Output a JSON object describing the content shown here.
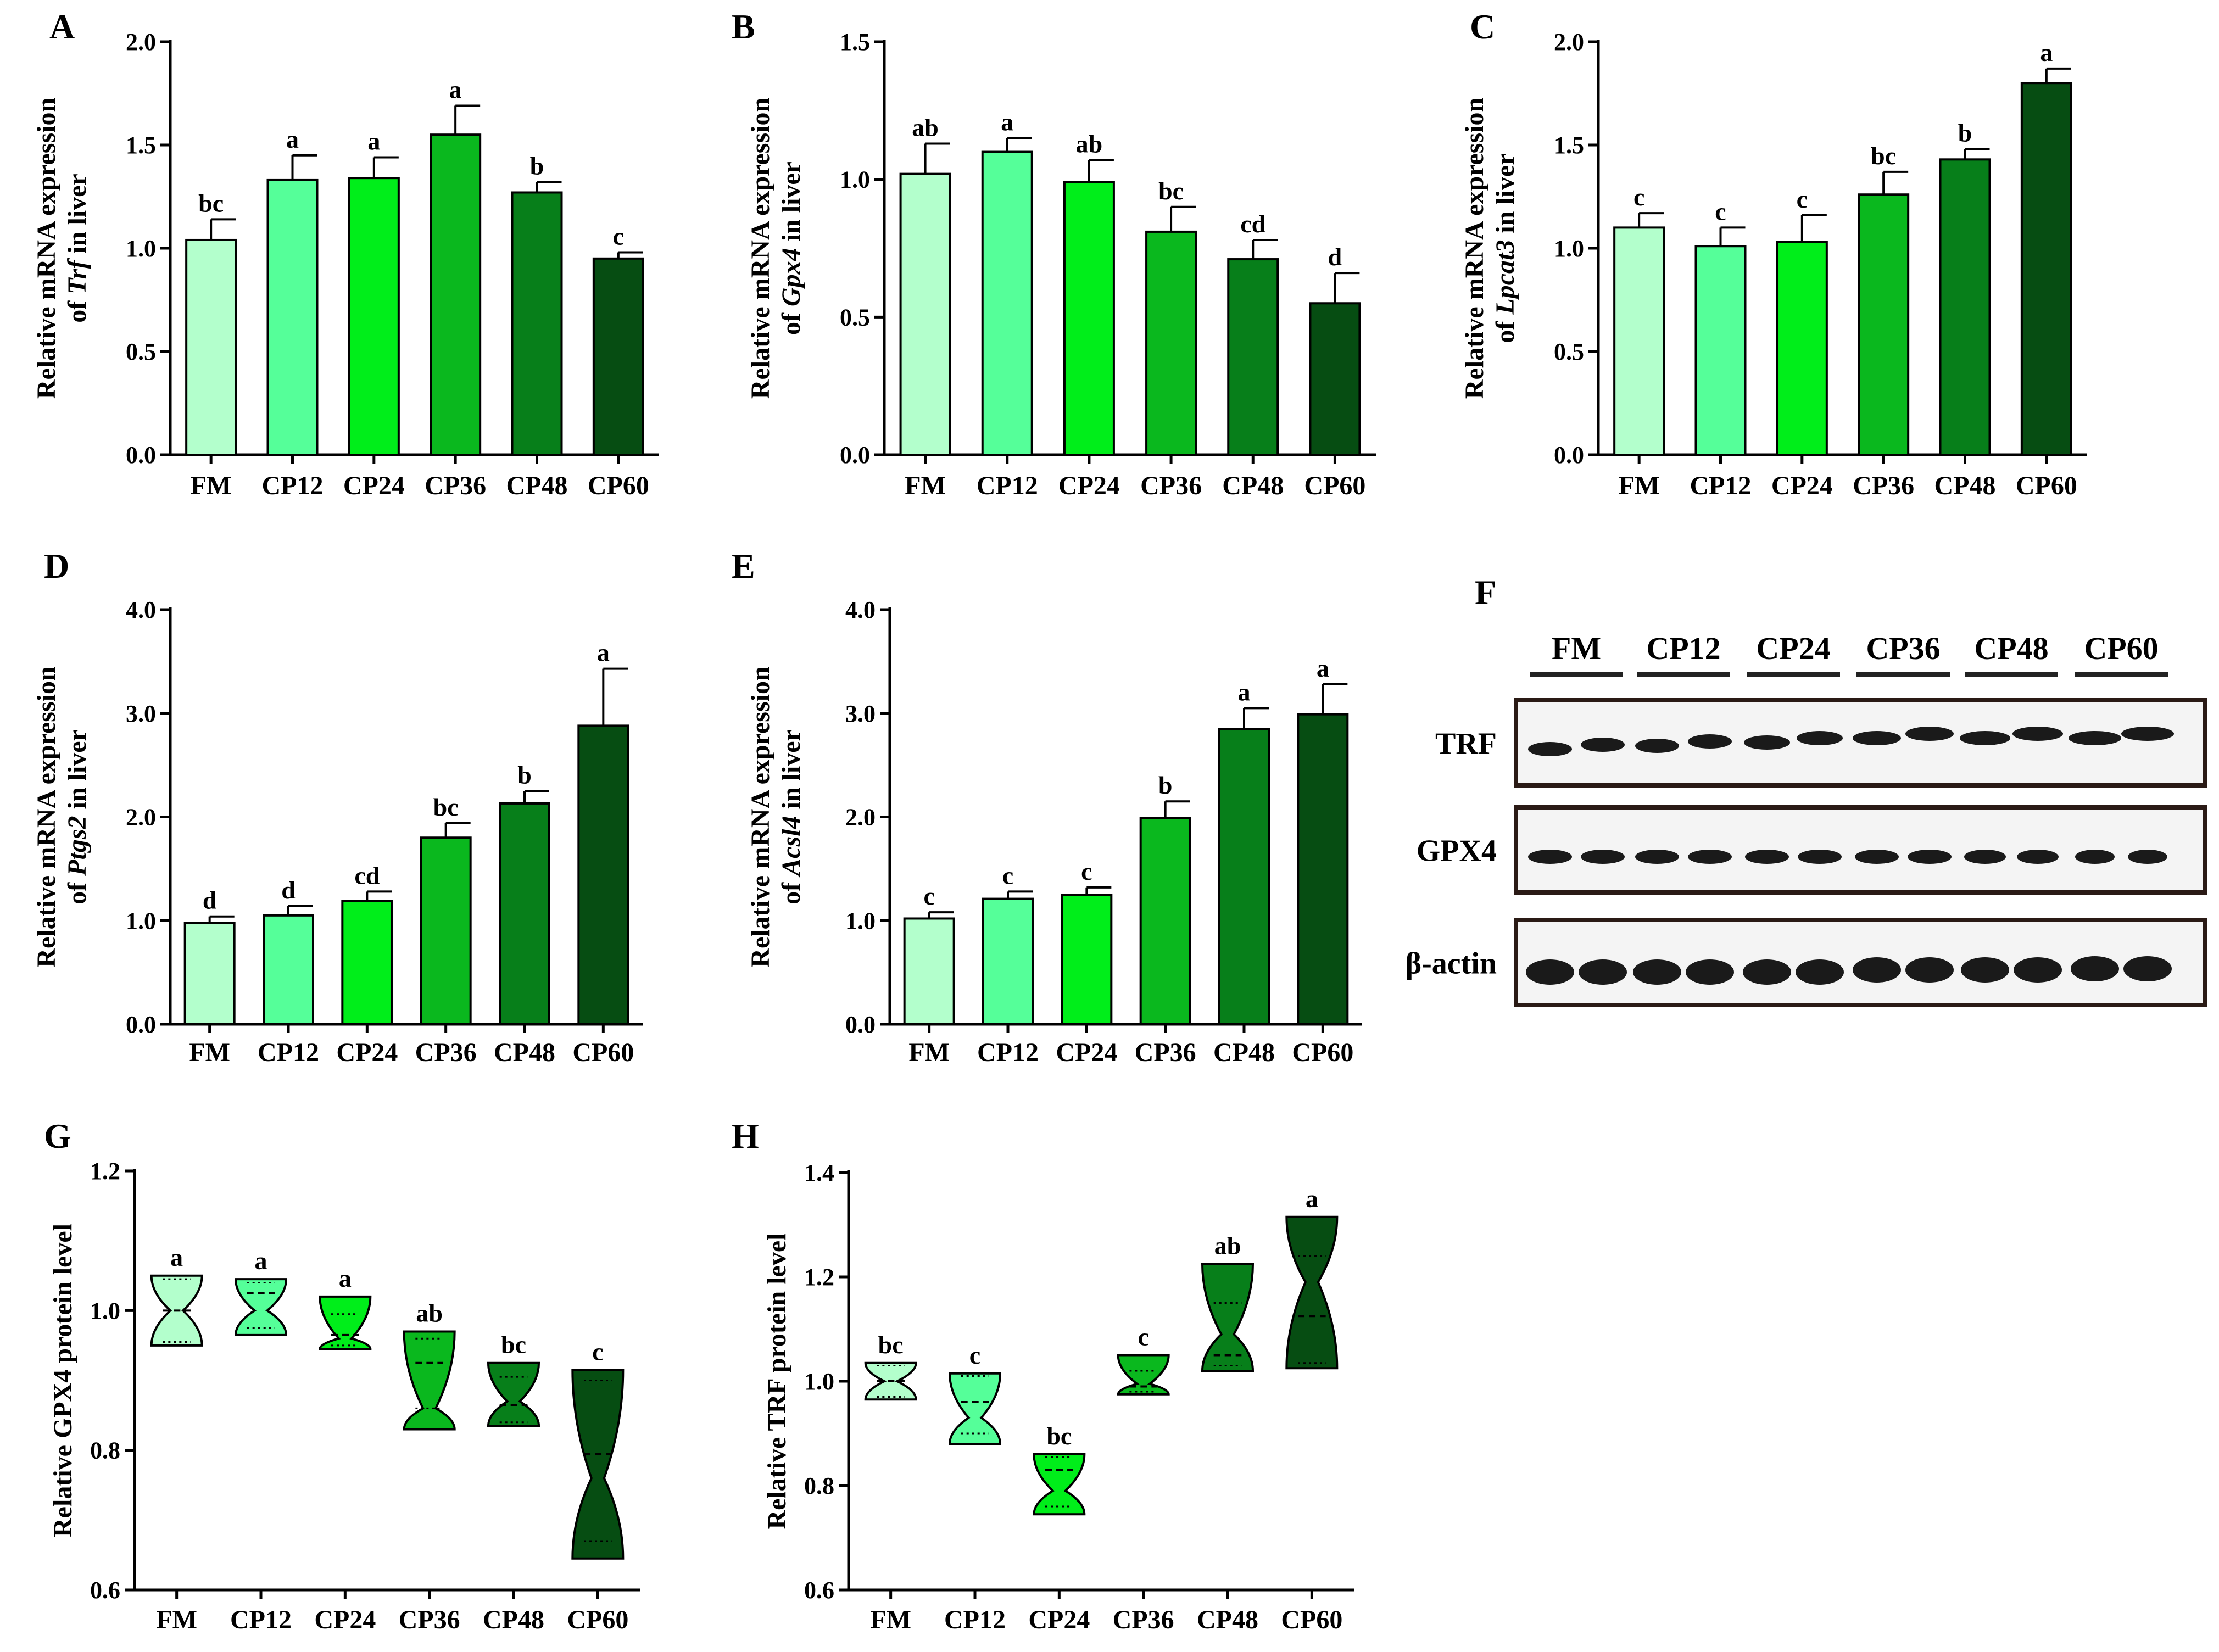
{
  "figure": {
    "colors": [
      "#b3ffcc",
      "#55ff99",
      "#00ee1a",
      "#0ab81e",
      "#077f1a",
      "#064d12"
    ],
    "blot": {
      "letter": "F",
      "lanes": [
        "FM",
        "CP12",
        "CP24",
        "CP36",
        "CP48",
        "CP60"
      ],
      "rows": [
        "TRF",
        "GPX4",
        "β-actin"
      ]
    }
  },
  "chart_data": [
    {
      "id": "A",
      "letter": "A",
      "type": "bar",
      "title": "",
      "ylabel_line1": "Relative mRNA expression",
      "ylabel_line2_pre": "of ",
      "ylabel_gene": "Trf",
      "ylabel_line2_post": " in liver",
      "categories": [
        "FM",
        "CP12",
        "CP24",
        "CP36",
        "CP48",
        "CP60"
      ],
      "values": [
        1.04,
        1.33,
        1.34,
        1.55,
        1.27,
        0.95
      ],
      "errors": [
        0.1,
        0.12,
        0.1,
        0.14,
        0.05,
        0.03
      ],
      "letters": [
        "bc",
        "a",
        "a",
        "a",
        "b",
        "c"
      ],
      "ylim": [
        0,
        2.0
      ],
      "ticks": [
        "0.0",
        "0.5",
        "1.0",
        "1.5",
        "2.0"
      ]
    },
    {
      "id": "B",
      "letter": "B",
      "type": "bar",
      "title": "",
      "ylabel_line1": "Relative mRNA expression",
      "ylabel_line2_pre": "of ",
      "ylabel_gene": "Gpx4",
      "ylabel_line2_post": " in liver",
      "categories": [
        "FM",
        "CP12",
        "CP24",
        "CP36",
        "CP48",
        "CP60"
      ],
      "values": [
        1.02,
        1.1,
        0.99,
        0.81,
        0.71,
        0.55
      ],
      "errors": [
        0.11,
        0.05,
        0.08,
        0.09,
        0.07,
        0.11
      ],
      "letters": [
        "ab",
        "a",
        "ab",
        "bc",
        "cd",
        "d"
      ],
      "ylim": [
        0,
        1.5
      ],
      "ticks": [
        "0.0",
        "0.5",
        "1.0",
        "1.5"
      ]
    },
    {
      "id": "C",
      "letter": "C",
      "type": "bar",
      "title": "",
      "ylabel_line1": "Relative mRNA expression",
      "ylabel_line2_pre": "of ",
      "ylabel_gene": "Lpcat3",
      "ylabel_line2_post": " in liver",
      "categories": [
        "FM",
        "CP12",
        "CP24",
        "CP36",
        "CP48",
        "CP60"
      ],
      "values": [
        1.1,
        1.01,
        1.03,
        1.26,
        1.43,
        1.8
      ],
      "errors": [
        0.07,
        0.09,
        0.13,
        0.11,
        0.05,
        0.07
      ],
      "letters": [
        "c",
        "c",
        "c",
        "bc",
        "b",
        "a"
      ],
      "ylim": [
        0,
        2.0
      ],
      "ticks": [
        "0.0",
        "0.5",
        "1.0",
        "1.5",
        "2.0"
      ]
    },
    {
      "id": "D",
      "letter": "D",
      "type": "bar",
      "title": "",
      "ylabel_line1": "Relative mRNA expression",
      "ylabel_line2_pre": "of ",
      "ylabel_gene": "Ptgs2",
      "ylabel_line2_post": " in liver",
      "categories": [
        "FM",
        "CP12",
        "CP24",
        "CP36",
        "CP48",
        "CP60"
      ],
      "values": [
        0.98,
        1.05,
        1.19,
        1.8,
        2.13,
        2.88
      ],
      "errors": [
        0.06,
        0.09,
        0.09,
        0.14,
        0.12,
        0.55
      ],
      "letters": [
        "d",
        "d",
        "cd",
        "bc",
        "b",
        "a"
      ],
      "ylim": [
        0,
        4.0
      ],
      "ticks": [
        "0.0",
        "1.0",
        "2.0",
        "3.0",
        "4.0"
      ]
    },
    {
      "id": "E",
      "letter": "E",
      "type": "bar",
      "title": "",
      "ylabel_line1": "Relative mRNA expression",
      "ylabel_line2_pre": "of ",
      "ylabel_gene": "Acsl4",
      "ylabel_line2_post": " in liver",
      "categories": [
        "FM",
        "CP12",
        "CP24",
        "CP36",
        "CP48",
        "CP60"
      ],
      "values": [
        1.02,
        1.21,
        1.25,
        1.99,
        2.85,
        2.99
      ],
      "errors": [
        0.06,
        0.07,
        0.07,
        0.16,
        0.2,
        0.29
      ],
      "letters": [
        "c",
        "c",
        "c",
        "b",
        "a",
        "a"
      ],
      "ylim": [
        0,
        4.0
      ],
      "ticks": [
        "0.0",
        "1.0",
        "2.0",
        "3.0",
        "4.0"
      ]
    },
    {
      "id": "G",
      "letter": "G",
      "type": "violin",
      "title": "",
      "ylabel_line1": "Relative  GPX4 protein level",
      "categories": [
        "FM",
        "CP12",
        "CP24",
        "CP36",
        "CP48",
        "CP60"
      ],
      "series": [
        {
          "min": 0.95,
          "max": 1.05,
          "q1": 0.955,
          "median": 1.0,
          "q3": 1.045,
          "neck": 1.0
        },
        {
          "min": 0.965,
          "max": 1.045,
          "q1": 0.975,
          "median": 1.025,
          "q3": 1.04,
          "neck": 1.0
        },
        {
          "min": 0.945,
          "max": 1.02,
          "q1": 0.95,
          "median": 0.965,
          "q3": 0.995,
          "neck": 0.96
        },
        {
          "min": 0.83,
          "max": 0.97,
          "q1": 0.86,
          "median": 0.925,
          "q3": 0.96,
          "neck": 0.86
        },
        {
          "min": 0.835,
          "max": 0.925,
          "q1": 0.84,
          "median": 0.865,
          "q3": 0.905,
          "neck": 0.87
        },
        {
          "min": 0.645,
          "max": 0.915,
          "q1": 0.67,
          "median": 0.795,
          "q3": 0.9,
          "neck": 0.76
        }
      ],
      "letters": [
        "a",
        "a",
        "a",
        "ab",
        "bc",
        "c"
      ],
      "ylim": [
        0.6,
        1.2
      ],
      "ticks": [
        "0.6",
        "0.8",
        "1.0",
        "1.2"
      ]
    },
    {
      "id": "H",
      "letter": "H",
      "type": "violin",
      "title": "",
      "ylabel_line1": "Relative TRF protein level",
      "categories": [
        "FM",
        "CP12",
        "CP24",
        "CP36",
        "CP48",
        "CP60"
      ],
      "series": [
        {
          "min": 0.965,
          "max": 1.035,
          "q1": 0.97,
          "median": 1.0,
          "q3": 1.03,
          "neck": 1.0
        },
        {
          "min": 0.88,
          "max": 1.015,
          "q1": 0.9,
          "median": 0.96,
          "q3": 1.01,
          "neck": 0.93
        },
        {
          "min": 0.745,
          "max": 0.86,
          "q1": 0.76,
          "median": 0.83,
          "q3": 0.855,
          "neck": 0.79
        },
        {
          "min": 0.975,
          "max": 1.05,
          "q1": 0.98,
          "median": 0.99,
          "q3": 1.02,
          "neck": 0.995
        },
        {
          "min": 1.02,
          "max": 1.225,
          "q1": 1.03,
          "median": 1.05,
          "q3": 1.15,
          "neck": 1.09
        },
        {
          "min": 1.025,
          "max": 1.315,
          "q1": 1.035,
          "median": 1.125,
          "q3": 1.24,
          "neck": 1.19
        }
      ],
      "letters": [
        "bc",
        "c",
        "bc",
        "c",
        "ab",
        "a"
      ],
      "ylim": [
        0.6,
        1.4
      ],
      "ticks": [
        "0.6",
        "0.8",
        "1.0",
        "1.2",
        "1.4"
      ]
    }
  ]
}
